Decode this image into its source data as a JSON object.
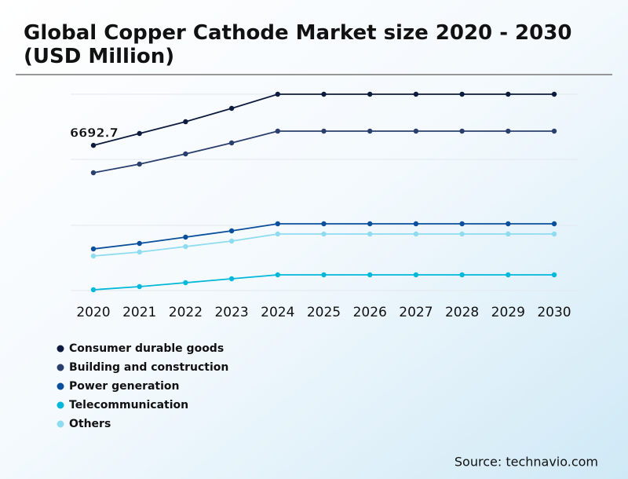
{
  "chart_data": {
    "type": "line",
    "title": "Global Copper Cathode Market size 2020 - 2030 (USD Million)",
    "categories": [
      "2020",
      "2021",
      "2022",
      "2023",
      "2024",
      "2025",
      "2026",
      "2027",
      "2028",
      "2029",
      "2030"
    ],
    "series": [
      {
        "name": "Consumer durable goods",
        "color": "#0d1b3e",
        "values": [
          6692.7,
          7240,
          7783,
          8398,
          9050,
          9050,
          9050,
          9050,
          9050,
          9050,
          9050
        ]
      },
      {
        "name": "Building and construction",
        "color": "#2a3f6e",
        "values": [
          5430,
          5828,
          6299,
          6806,
          7349,
          7349,
          7349,
          7349,
          7349,
          7349,
          7349
        ]
      },
      {
        "name": "Power generation",
        "color": "#0a4f9c",
        "values": [
          1919,
          2172,
          2462,
          2751,
          3077,
          3077,
          3077,
          3077,
          3077,
          3077,
          3077
        ]
      },
      {
        "name": "Telecommunication",
        "color": "#00b8d9",
        "values": [
          36,
          181,
          362,
          543,
          724,
          724,
          724,
          724,
          724,
          724,
          724
        ]
      },
      {
        "name": "Others",
        "color": "#8fdcf0",
        "values": [
          1593,
          1774,
          2027,
          2281,
          2606,
          2606,
          2606,
          2606,
          2606,
          2606,
          2606
        ]
      }
    ],
    "ylim": [
      0,
      9050
    ],
    "source": "Source: technavio.com"
  }
}
